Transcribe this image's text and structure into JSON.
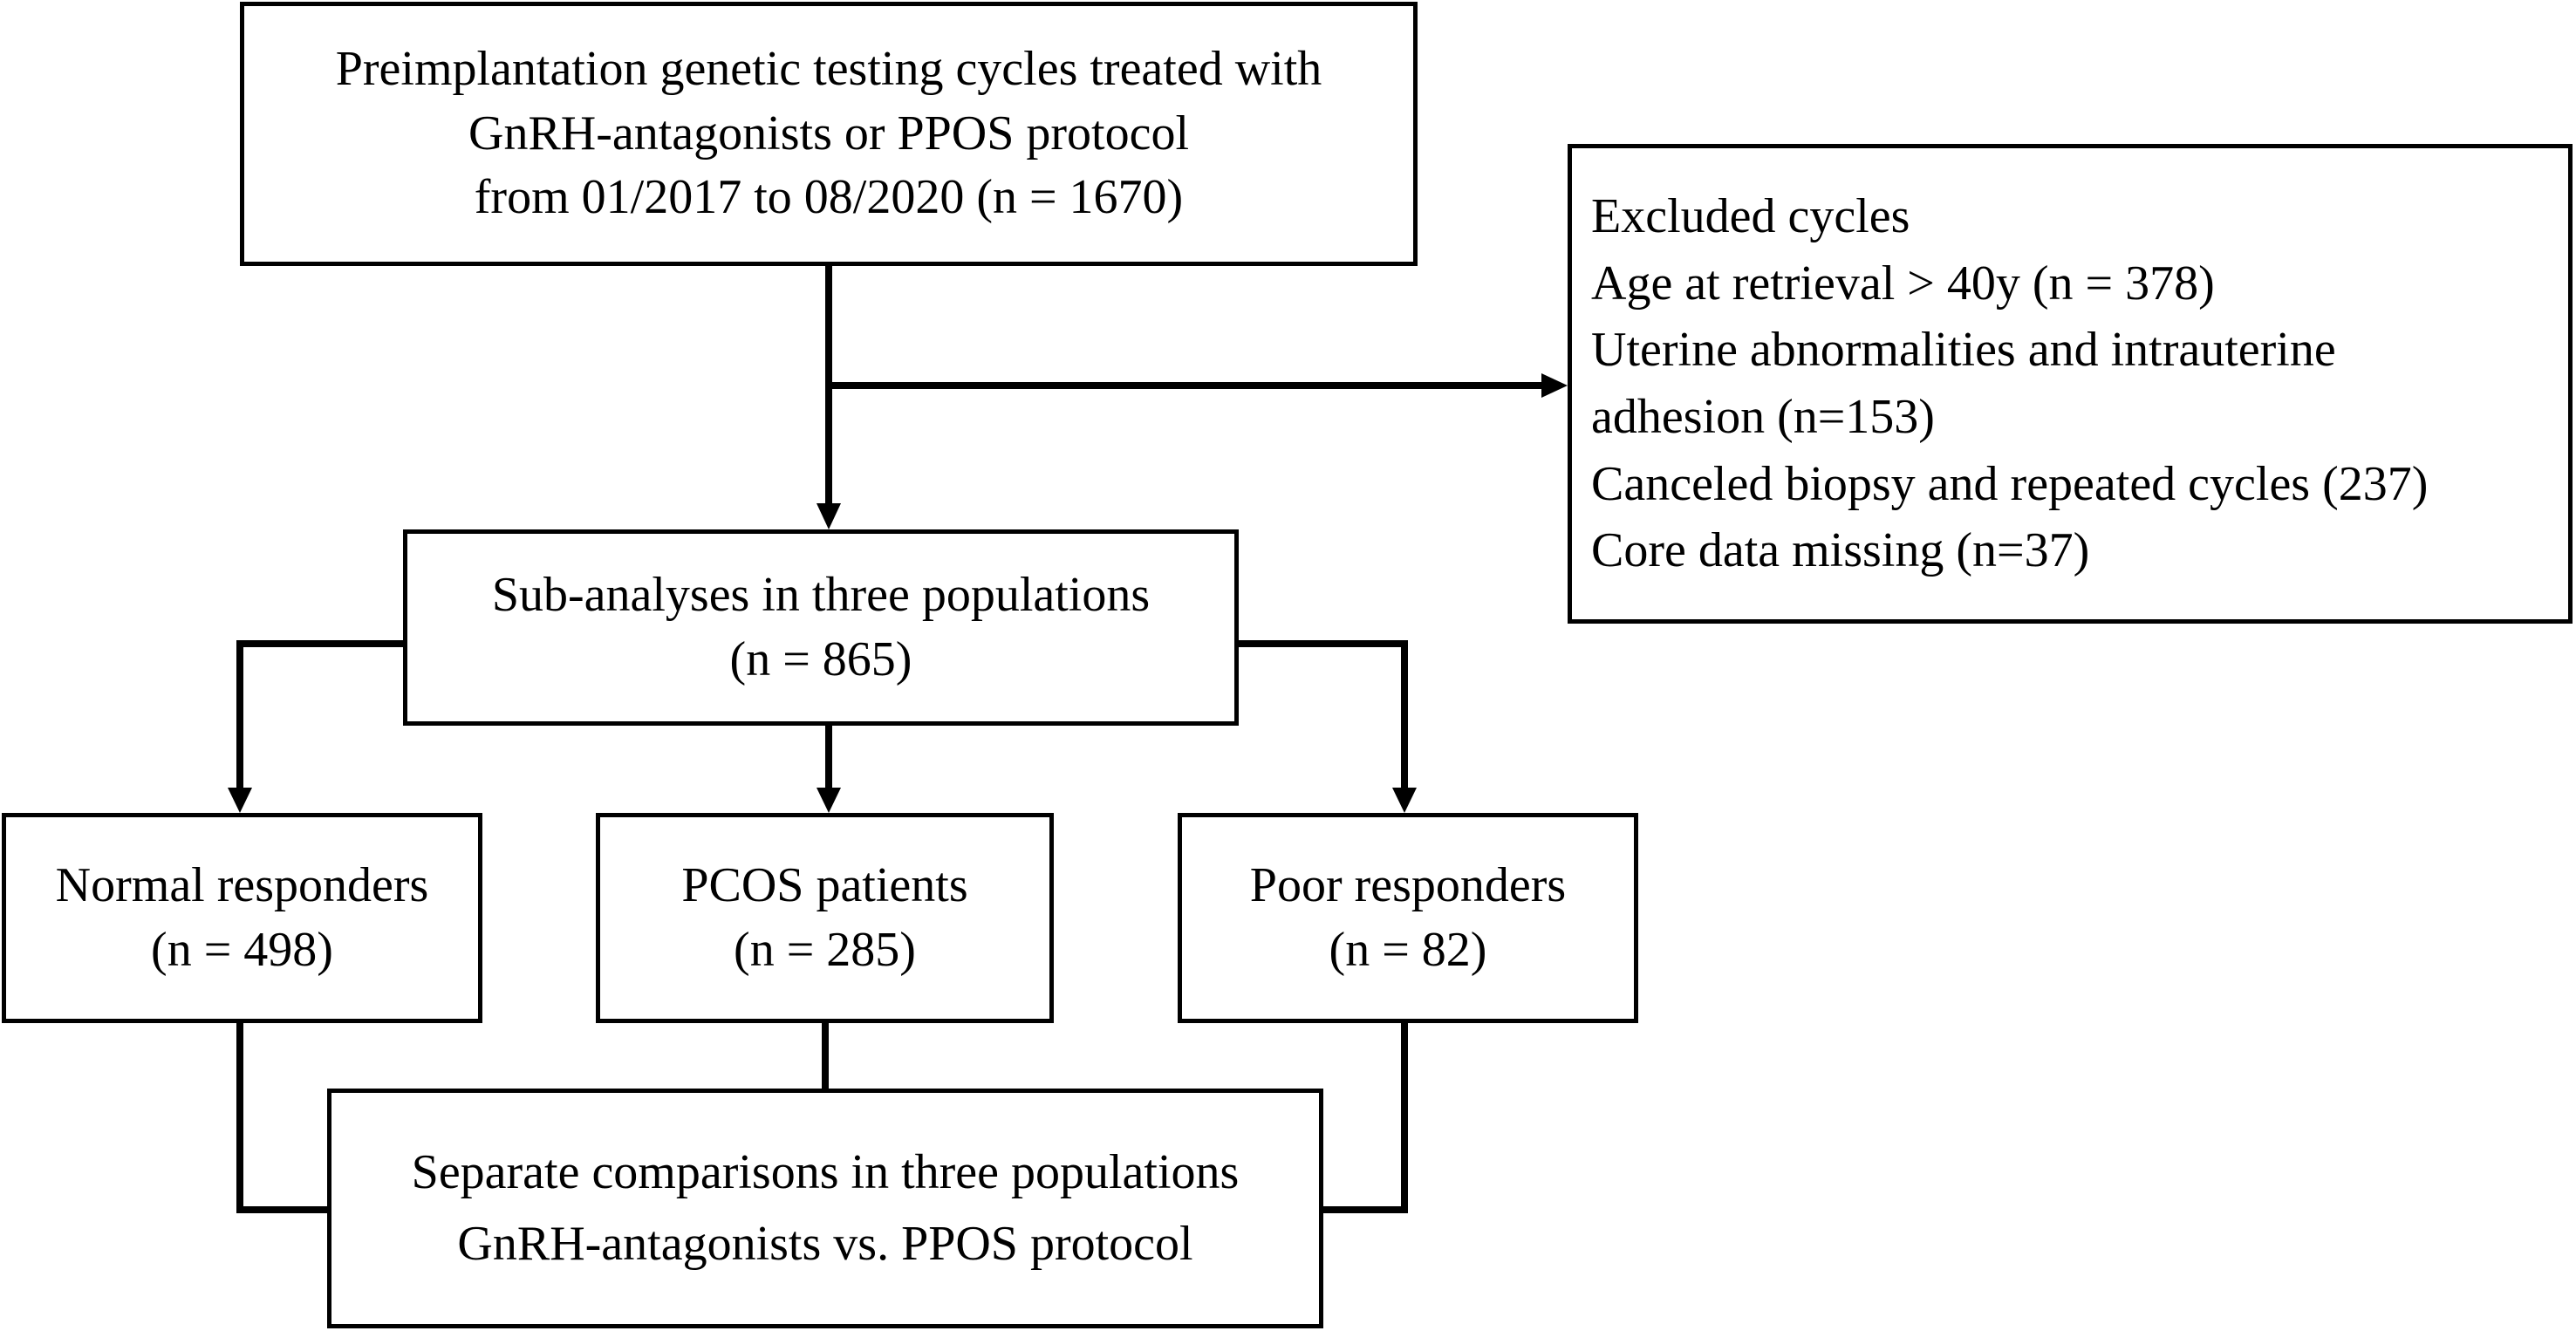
{
  "flowchart": {
    "start": {
      "lines": [
        "Preimplantation genetic testing cycles treated with",
        "GnRH-antagonists or PPOS protocol",
        "from 01/2017 to 08/2020 (n = 1670)"
      ]
    },
    "excluded": {
      "lines": [
        "Excluded cycles",
        "Age at retrieval > 40y (n = 378)",
        "Uterine abnormalities and intrauterine",
        "adhesion (n=153)",
        "Canceled biopsy and repeated cycles (237)",
        "Core data missing (n=37)"
      ]
    },
    "sub_analyses": {
      "lines": [
        "Sub-analyses in three populations",
        "(n = 865)"
      ]
    },
    "groups": [
      {
        "label": "Normal responders",
        "count": "(n = 498)"
      },
      {
        "label": "PCOS patients",
        "count": "(n = 285)"
      },
      {
        "label": "Poor responders",
        "count": "(n = 82)"
      }
    ],
    "comparison": {
      "lines": [
        "Separate comparisons in three populations",
        "GnRH-antagonists vs. PPOS protocol"
      ]
    }
  }
}
